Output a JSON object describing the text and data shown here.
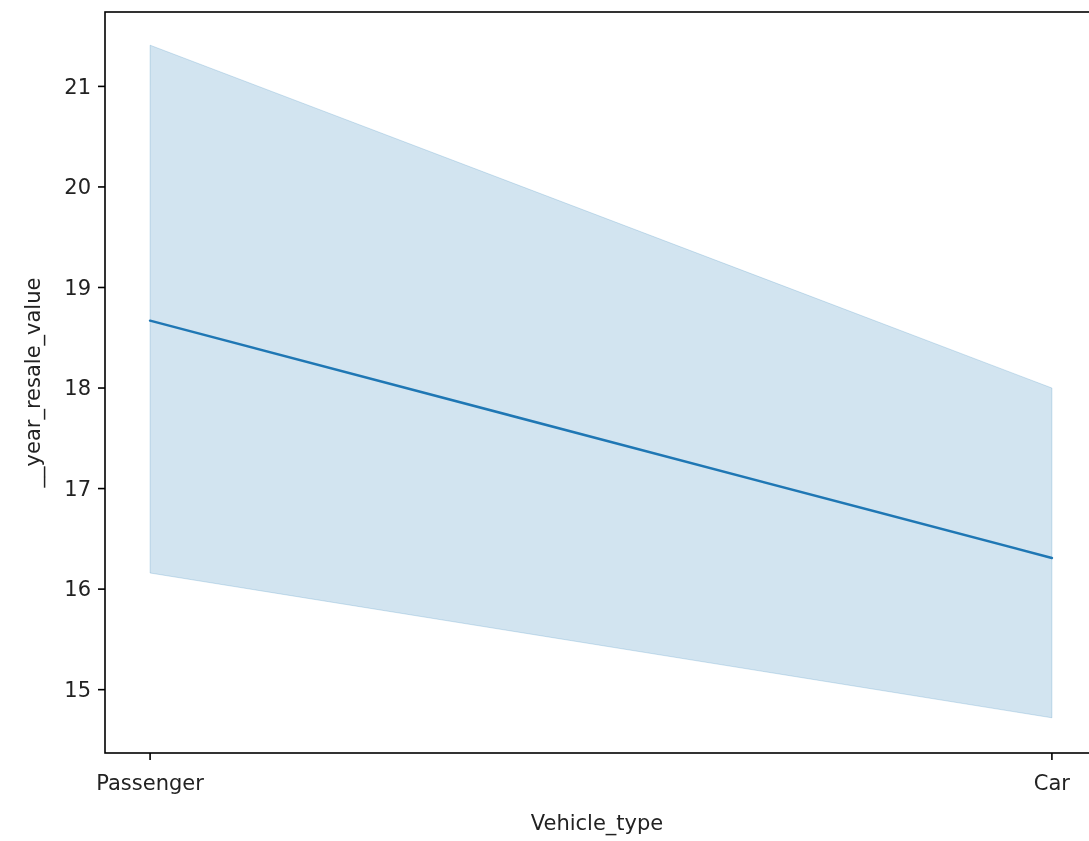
{
  "chart_data": {
    "type": "line",
    "xlabel": "Vehicle_type",
    "ylabel": "__year_resale_value",
    "categories": [
      "Passenger",
      "Car"
    ],
    "series": [
      {
        "color": "#1f77b4",
        "values": [
          18.67,
          16.31
        ],
        "lower": [
          16.16,
          14.72
        ],
        "upper": [
          21.41,
          18.0
        ]
      }
    ],
    "ylim": [
      14.37,
      21.74
    ],
    "yticks": [
      15,
      16,
      17,
      18,
      19,
      20,
      21
    ]
  }
}
